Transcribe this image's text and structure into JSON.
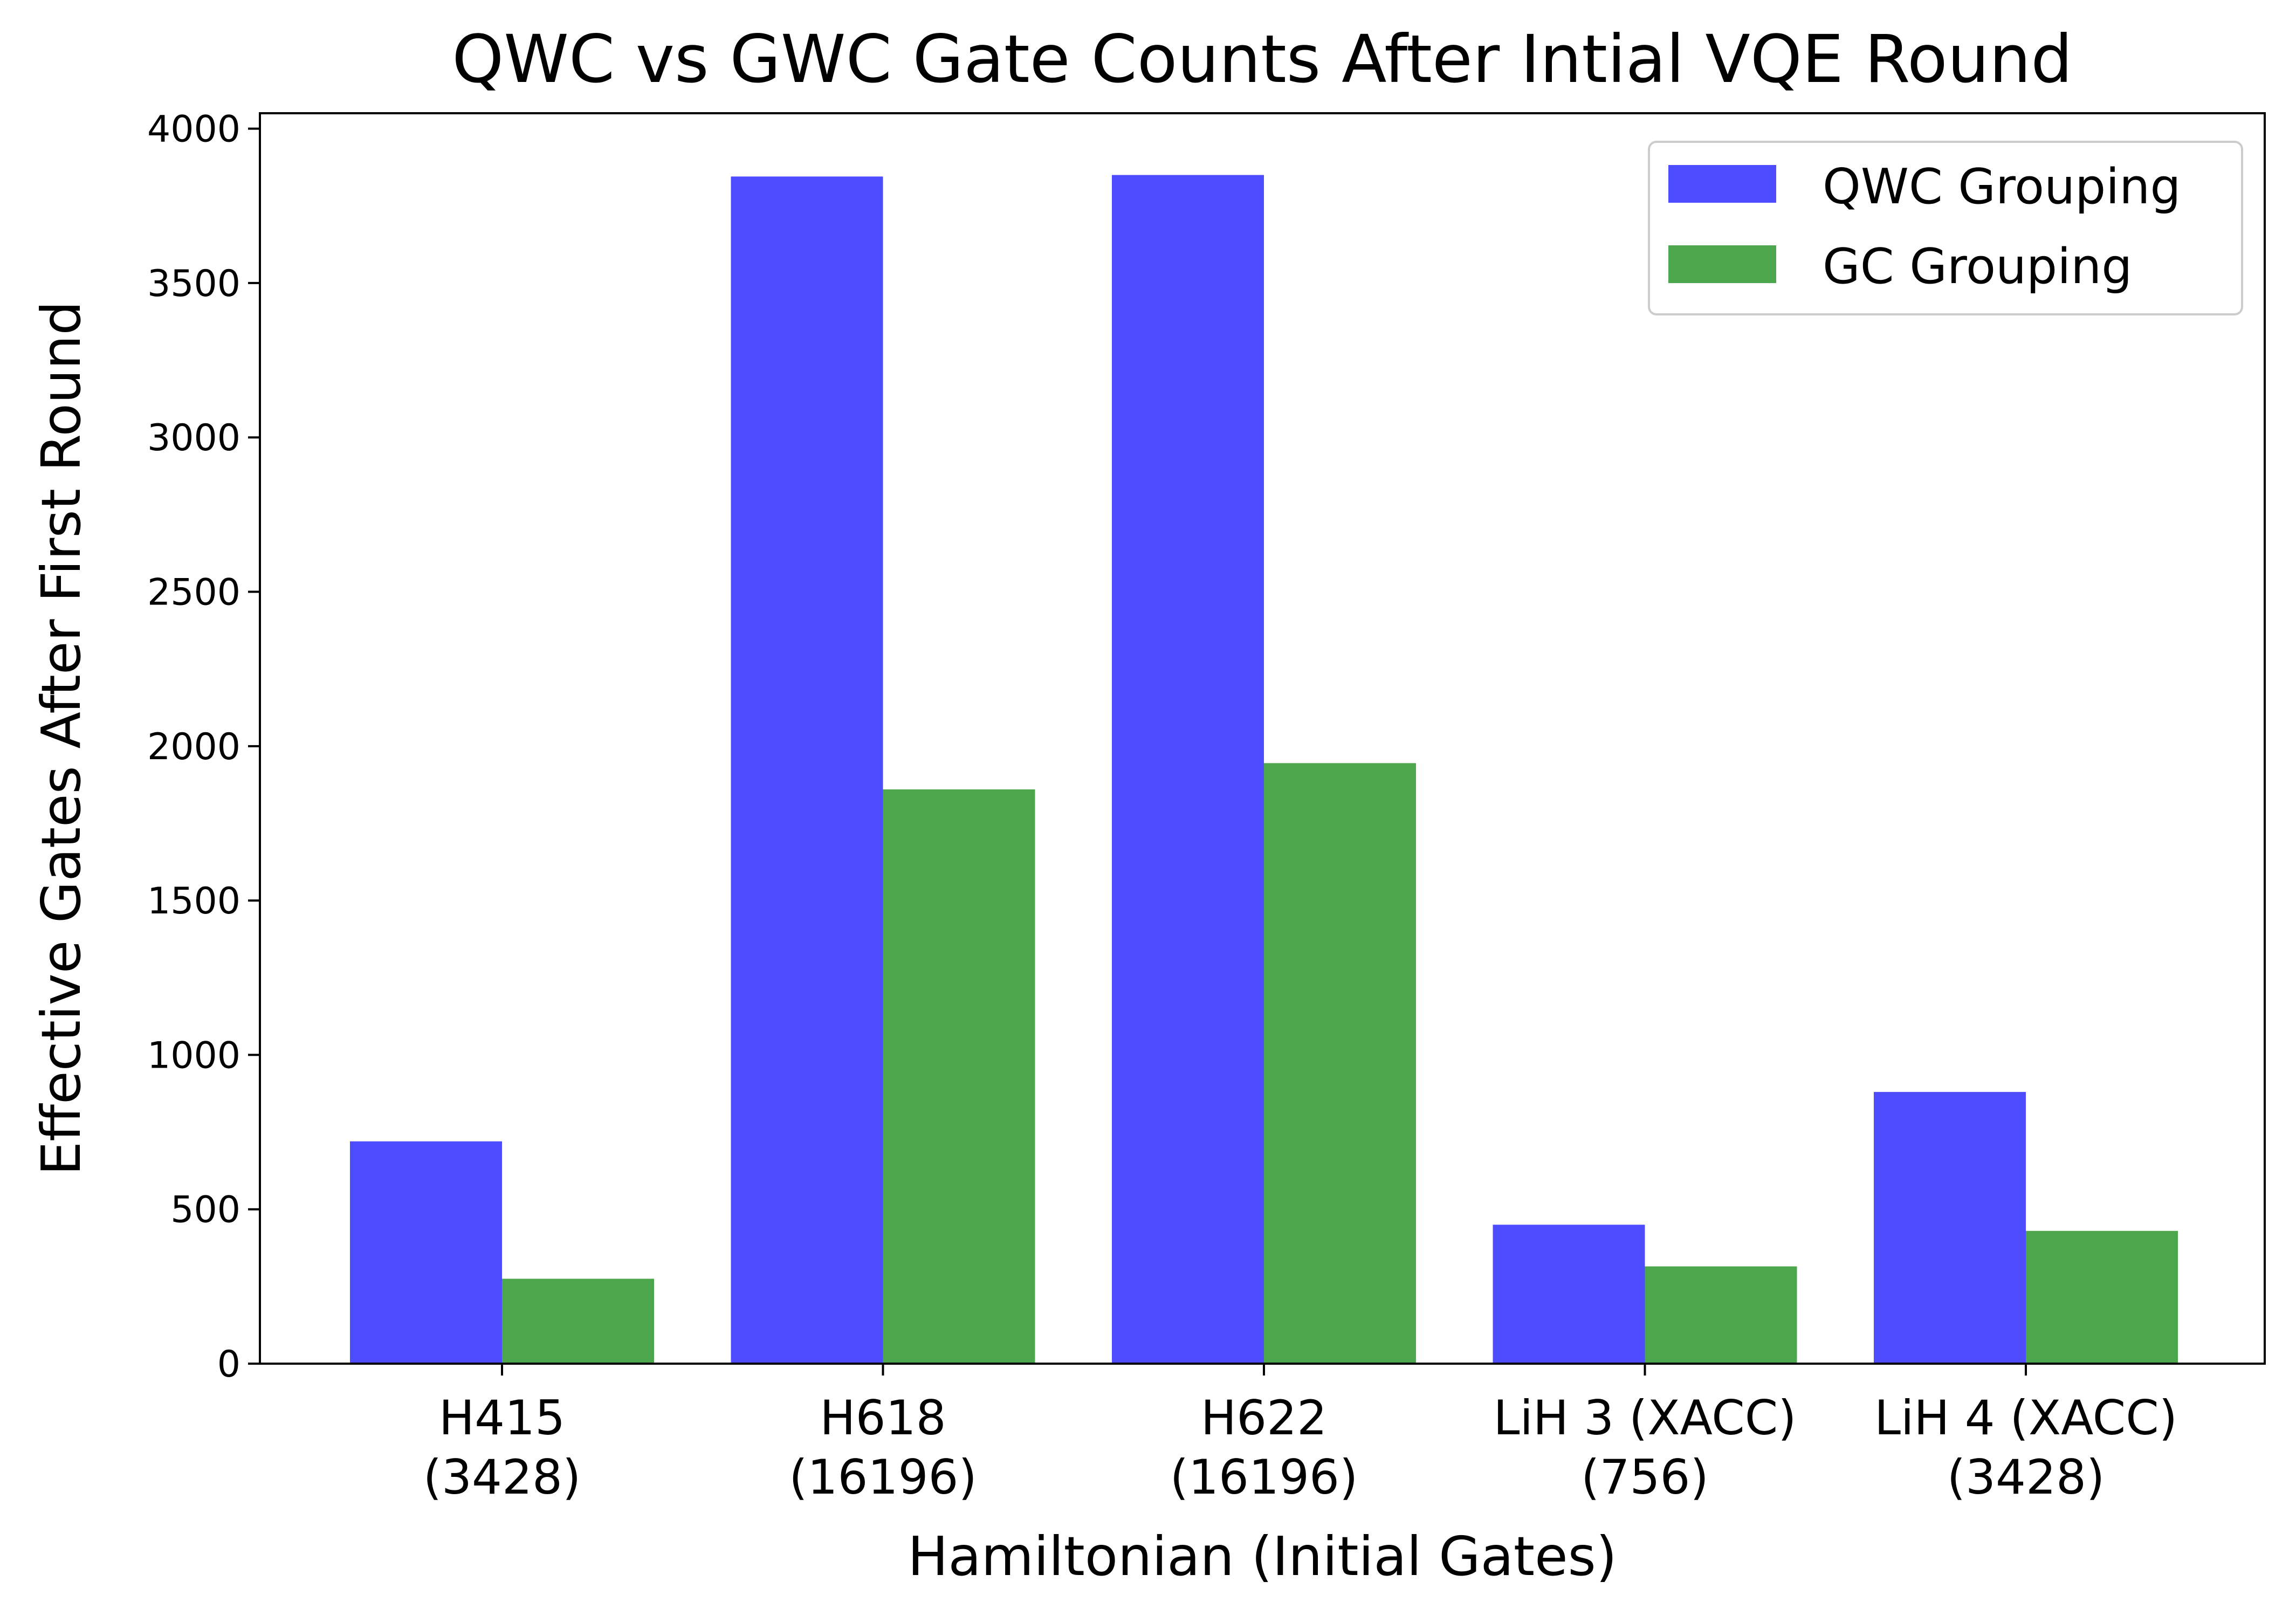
{
  "chart_data": {
    "type": "bar",
    "title": "QWC vs GWC Gate Counts After Intial VQE Round",
    "xlabel": "Hamiltonian (Initial Gates)",
    "ylabel": "Effective Gates After First Round",
    "categories": [
      [
        "H415",
        "(3428)"
      ],
      [
        "H618",
        "(16196)"
      ],
      [
        "H622",
        "(16196)"
      ],
      [
        "LiH 3 (XACC)",
        "(756)"
      ],
      [
        "LiH 4 (XACC)",
        "(3428)"
      ]
    ],
    "series": [
      {
        "name": "QWC Grouping",
        "color": "#4d4dff",
        "values": [
          720,
          3845,
          3850,
          450,
          880
        ]
      },
      {
        "name": "GC Grouping",
        "color": "#4ca64c",
        "values": [
          275,
          1860,
          1945,
          315,
          430
        ]
      }
    ],
    "ylim": [
      0,
      4050
    ],
    "yticks": [
      0,
      500,
      1000,
      1500,
      2000,
      2500,
      3000,
      3500,
      4000
    ],
    "grid": false,
    "legend": "top-right"
  }
}
